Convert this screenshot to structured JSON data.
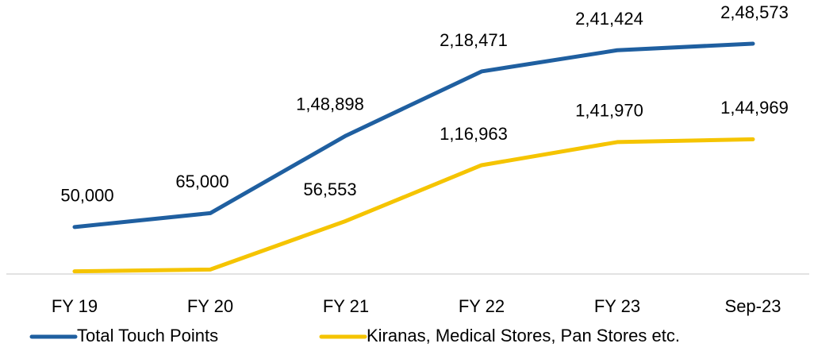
{
  "chart_data": {
    "type": "line",
    "categories": [
      "FY 19",
      "FY 20",
      "FY 21",
      "FY 22",
      "FY 23",
      "Sep-23"
    ],
    "series": [
      {
        "name": "Total Touch Points",
        "color": "#1f5fa0",
        "values": [
          50000,
          65000,
          148898,
          218471,
          241424,
          248573
        ],
        "value_labels": [
          "50,000",
          "65,000",
          "1,48,898",
          "2,18,471",
          "2,41,424",
          "2,48,573"
        ]
      },
      {
        "name": "Kiranas, Medical Stores, Pan Stores etc.",
        "color": "#f5c400",
        "values": [
          2000,
          4000,
          56553,
          116963,
          141970,
          144969
        ],
        "value_labels": [
          null,
          null,
          "56,553",
          "1,16,963",
          "1,41,970",
          "1,44,969"
        ]
      }
    ],
    "ylim": [
      0,
      280000
    ],
    "legend": "bottom"
  }
}
